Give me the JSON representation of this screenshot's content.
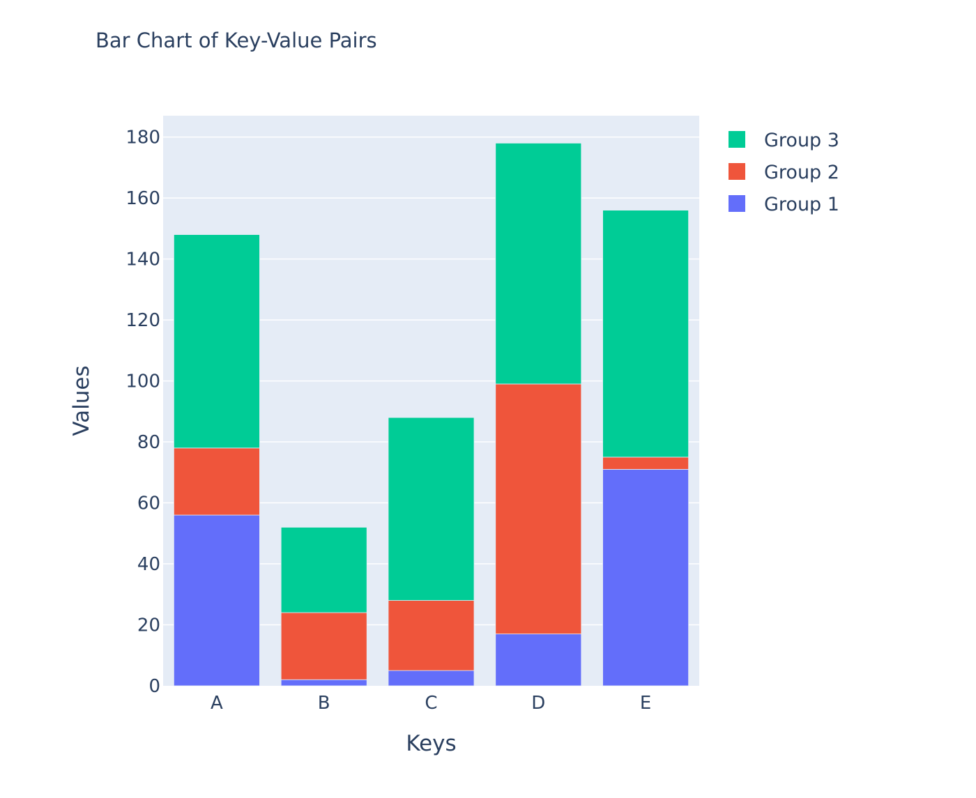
{
  "chart_data": {
    "type": "bar",
    "barmode": "stack",
    "title": "Bar Chart of Key-Value Pairs",
    "xlabel": "Keys",
    "ylabel": "Values",
    "categories": [
      "A",
      "B",
      "C",
      "D",
      "E"
    ],
    "series": [
      {
        "name": "Group 1",
        "color": "#636efa",
        "values": [
          56,
          2,
          5,
          17,
          71
        ]
      },
      {
        "name": "Group 2",
        "color": "#ef553b",
        "values": [
          22,
          22,
          23,
          82,
          4
        ]
      },
      {
        "name": "Group 3",
        "color": "#00cc96",
        "values": [
          70,
          28,
          60,
          79,
          81
        ]
      }
    ],
    "ylim": [
      0,
      187
    ],
    "yticks": [
      0,
      20,
      40,
      60,
      80,
      100,
      120,
      140,
      160,
      180
    ],
    "grid": true,
    "plot_background": "#e5ecf6",
    "legend_position": "right",
    "legend_order": [
      "Group 3",
      "Group 2",
      "Group 1"
    ]
  }
}
